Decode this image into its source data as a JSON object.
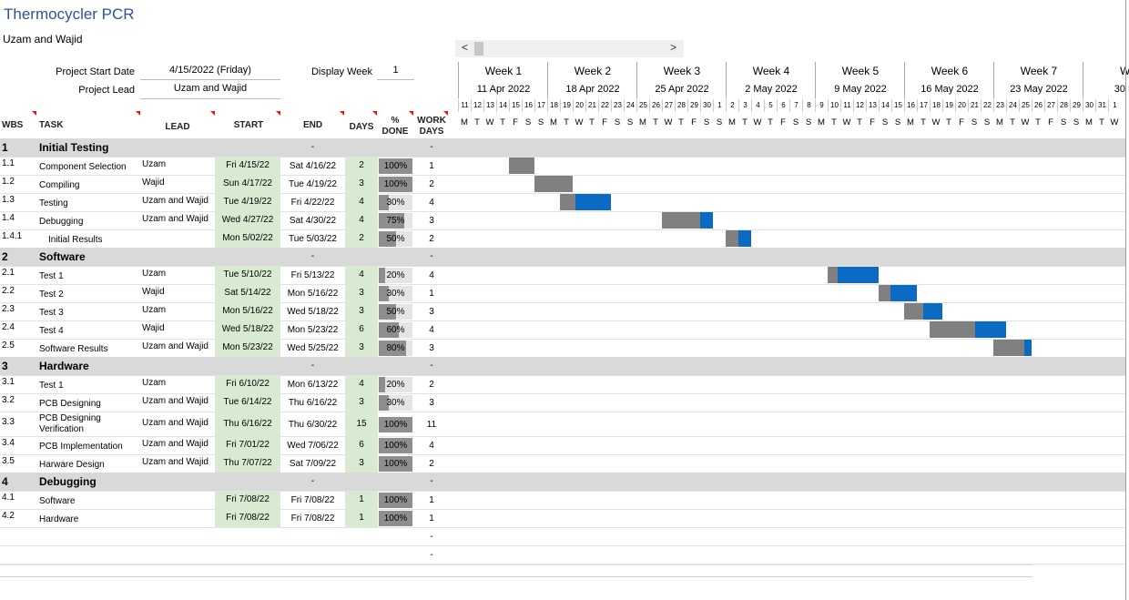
{
  "title": "Thermocycler PCR",
  "subtitle": "Uzam and Wajid",
  "info": {
    "start_label": "Project Start Date",
    "start_value": "4/15/2022 (Friday)",
    "lead_label": "Project Lead",
    "lead_value": "Uzam and Wajid",
    "week_label": "Display Week",
    "week_value": "1"
  },
  "scrollbar": {
    "left_arrow": "<",
    "right_arrow": ">"
  },
  "headers": {
    "wbs": "WBS",
    "task": "TASK",
    "lead": "LEAD",
    "start": "START",
    "end": "END",
    "days": "DAYS",
    "done1": "%",
    "done2": "DONE",
    "work1": "WORK",
    "work2": "DAYS"
  },
  "weeks": [
    {
      "name": "Week 1",
      "date": "11 Apr 2022"
    },
    {
      "name": "Week 2",
      "date": "18 Apr 2022"
    },
    {
      "name": "Week 3",
      "date": "25 Apr 2022"
    },
    {
      "name": "Week 4",
      "date": "2 May 2022"
    },
    {
      "name": "Week 5",
      "date": "9 May 2022"
    },
    {
      "name": "Week 6",
      "date": "16 May 2022"
    },
    {
      "name": "Week 7",
      "date": "23 May 2022"
    },
    {
      "name": "We",
      "date": "30 Ma"
    }
  ],
  "day_numbers": [
    "11",
    "12",
    "13",
    "14",
    "15",
    "16",
    "17",
    "18",
    "19",
    "20",
    "21",
    "22",
    "23",
    "24",
    "25",
    "26",
    "27",
    "28",
    "29",
    "30",
    "1",
    "2",
    "3",
    "4",
    "5",
    "6",
    "7",
    "8",
    "9",
    "10",
    "11",
    "12",
    "13",
    "14",
    "15",
    "16",
    "17",
    "18",
    "19",
    "20",
    "21",
    "22",
    "23",
    "24",
    "25",
    "26",
    "27",
    "28",
    "29",
    "30",
    "31",
    "1"
  ],
  "day_letters": [
    "M",
    "T",
    "W",
    "T",
    "F",
    "S",
    "S"
  ],
  "last_day_letters": [
    "M",
    "T",
    "W"
  ],
  "colors": {
    "title": "#2e5597",
    "phase": "#d9d9d9",
    "start_cell": "#d9ead3",
    "bar_done": "#808080",
    "bar_todo": "#0b6ac3"
  },
  "rows": [
    {
      "type": "phase",
      "wbs": "1",
      "task": "Initial Testing",
      "end": "-",
      "work": "-"
    },
    {
      "type": "task",
      "wbs": "1.1",
      "task": "Component Selection",
      "lead": "Uzam",
      "start": "Fri 4/15/22",
      "end": "Sat 4/16/22",
      "days": "2",
      "done": "100%",
      "pct": 100,
      "work": "1",
      "bar_start": 4,
      "bar_days": 2
    },
    {
      "type": "task",
      "wbs": "1.2",
      "task": "Compiling",
      "lead": "Wajid",
      "start": "Sun 4/17/22",
      "end": "Tue 4/19/22",
      "days": "3",
      "done": "100%",
      "pct": 100,
      "work": "2",
      "bar_start": 6,
      "bar_days": 3
    },
    {
      "type": "task",
      "wbs": "1.3",
      "task": "Testing",
      "lead": "Uzam and Wajid",
      "start": "Tue 4/19/22",
      "end": "Fri 4/22/22",
      "days": "4",
      "done": "30%",
      "pct": 30,
      "work": "4",
      "bar_start": 8,
      "bar_days": 4
    },
    {
      "type": "task",
      "wbs": "1.4",
      "task": "Debugging",
      "lead": "Uzam and Wajid",
      "start": "Wed 4/27/22",
      "end": "Sat 4/30/22",
      "days": "4",
      "done": "75%",
      "pct": 75,
      "work": "3",
      "bar_start": 16,
      "bar_days": 4
    },
    {
      "type": "task",
      "wbs": "1.4.1",
      "task": "Initial Results",
      "indent": true,
      "lead": "",
      "start": "Mon 5/02/22",
      "end": "Tue 5/03/22",
      "days": "2",
      "done": "50%",
      "pct": 50,
      "work": "2",
      "bar_start": 21,
      "bar_days": 2
    },
    {
      "type": "phase",
      "wbs": "2",
      "task": "Software",
      "end": "-",
      "work": "-"
    },
    {
      "type": "task",
      "wbs": "2.1",
      "task": "Test 1",
      "lead": "Uzam",
      "start": "Tue 5/10/22",
      "end": "Fri 5/13/22",
      "days": "4",
      "done": "20%",
      "pct": 20,
      "work": "4",
      "bar_start": 29,
      "bar_days": 4
    },
    {
      "type": "task",
      "wbs": "2.2",
      "task": "Test 2",
      "lead": "Wajid",
      "start": "Sat 5/14/22",
      "end": "Mon 5/16/22",
      "days": "3",
      "done": "30%",
      "pct": 30,
      "work": "1",
      "bar_start": 33,
      "bar_days": 3
    },
    {
      "type": "task",
      "wbs": "2.3",
      "task": "Test 3",
      "lead": "Uzam",
      "start": "Mon 5/16/22",
      "end": "Wed 5/18/22",
      "days": "3",
      "done": "50%",
      "pct": 50,
      "work": "3",
      "bar_start": 35,
      "bar_days": 3
    },
    {
      "type": "task",
      "wbs": "2.4",
      "task": "Test 4",
      "lead": "Wajid",
      "start": "Wed 5/18/22",
      "end": "Mon 5/23/22",
      "days": "6",
      "done": "60%",
      "pct": 60,
      "work": "4",
      "bar_start": 37,
      "bar_days": 6
    },
    {
      "type": "task",
      "wbs": "2.5",
      "task": "Software Results",
      "lead": "Uzam and Wajid",
      "start": "Mon 5/23/22",
      "end": "Wed 5/25/22",
      "days": "3",
      "done": "80%",
      "pct": 80,
      "work": "3",
      "bar_start": 42,
      "bar_days": 3
    },
    {
      "type": "phase",
      "wbs": "3",
      "task": "Hardware",
      "end": "-",
      "work": "-"
    },
    {
      "type": "task",
      "wbs": "3.1",
      "task": "Test 1",
      "lead": "Uzam",
      "start": "Fri 6/10/22",
      "end": "Mon 6/13/22",
      "days": "4",
      "done": "20%",
      "pct": 20,
      "work": "2"
    },
    {
      "type": "task",
      "wbs": "3.2",
      "task": "PCB Designing",
      "lead": "Uzam and Wajid",
      "start": "Tue 6/14/22",
      "end": "Thu 6/16/22",
      "days": "3",
      "done": "30%",
      "pct": 30,
      "work": "3"
    },
    {
      "type": "task",
      "wbs": "3.3",
      "task": "PCB Designing Verification",
      "tall": true,
      "lead": "Uzam and Wajid",
      "start": "Thu 6/16/22",
      "end": "Thu 6/30/22",
      "days": "15",
      "done": "100%",
      "pct": 100,
      "work": "11"
    },
    {
      "type": "task",
      "wbs": "3.4",
      "task": "PCB Implementation",
      "lead": "Uzam and Wajid",
      "start": "Fri 7/01/22",
      "end": "Wed 7/06/22",
      "days": "6",
      "done": "100%",
      "pct": 100,
      "work": "4"
    },
    {
      "type": "task",
      "wbs": "3.5",
      "task": "Harware Design",
      "lead": "Uzam and Wajid",
      "start": "Thu 7/07/22",
      "end": "Sat 7/09/22",
      "days": "3",
      "done": "100%",
      "pct": 100,
      "work": "2"
    },
    {
      "type": "phase",
      "wbs": "4",
      "task": "Debugging",
      "end": "-",
      "work": "-"
    },
    {
      "type": "task",
      "wbs": "4.1",
      "task": "Software",
      "lead": "",
      "start": "Fri 7/08/22",
      "end": "Fri 7/08/22",
      "days": "1",
      "done": "100%",
      "pct": 100,
      "work": "1"
    },
    {
      "type": "task",
      "wbs": "4.2",
      "task": "Hardware",
      "lead": "",
      "start": "Fri 7/08/22",
      "end": "Fri 7/08/22",
      "days": "1",
      "done": "100%",
      "pct": 100,
      "work": "1"
    },
    {
      "type": "empty",
      "work": "-"
    },
    {
      "type": "empty",
      "work": "-"
    }
  ]
}
